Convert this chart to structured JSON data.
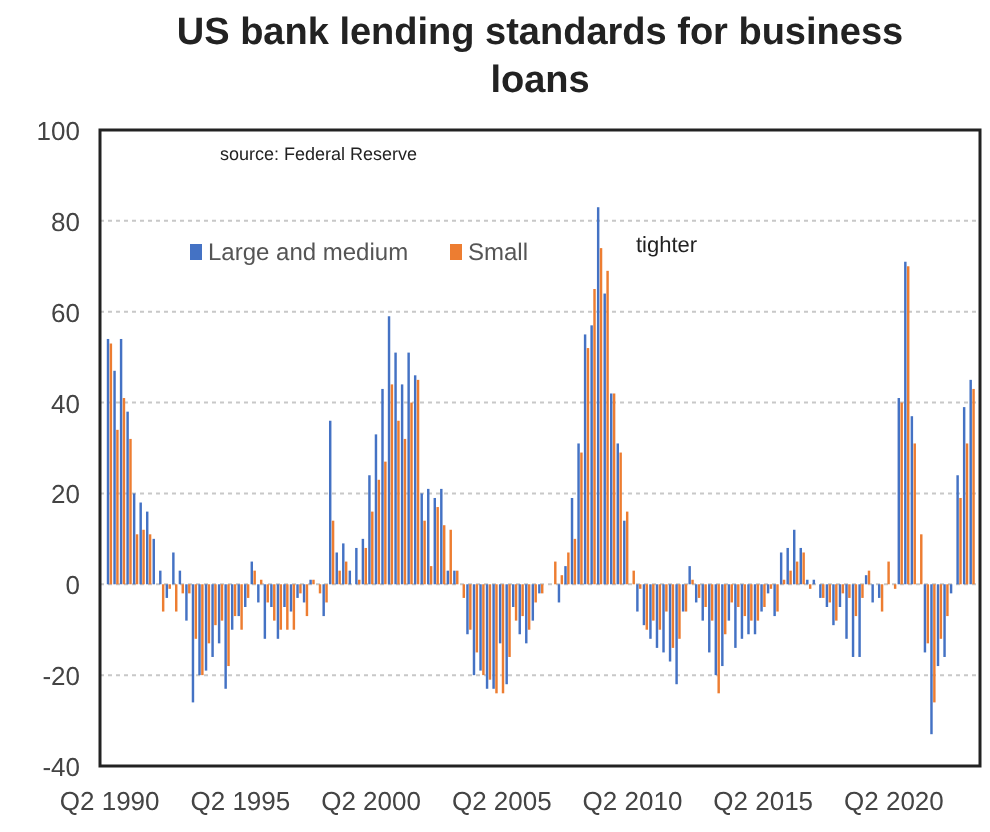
{
  "chart_data": {
    "type": "bar",
    "title": "US bank lending standards for business loans",
    "categories": [
      "Q2 1990",
      null,
      null,
      null,
      null,
      null,
      null,
      null,
      null,
      null,
      null,
      null,
      null,
      null,
      null,
      null,
      null,
      null,
      null,
      null,
      "Q2 1995",
      null,
      null,
      null,
      null,
      null,
      null,
      null,
      null,
      null,
      null,
      null,
      null,
      null,
      null,
      null,
      null,
      null,
      null,
      null,
      "Q2 2000",
      null,
      null,
      null,
      null,
      null,
      null,
      null,
      null,
      null,
      null,
      null,
      null,
      null,
      null,
      null,
      null,
      null,
      null,
      null,
      "Q2 2005",
      null,
      null,
      null,
      null,
      null,
      null,
      null,
      null,
      null,
      null,
      null,
      null,
      null,
      null,
      null,
      null,
      null,
      null,
      null,
      "Q2 2010",
      null,
      null,
      null,
      null,
      null,
      null,
      null,
      null,
      null,
      null,
      null,
      null,
      null,
      null,
      null,
      null,
      null,
      null,
      null,
      "Q2 2015",
      null,
      null,
      null,
      null,
      null,
      null,
      null,
      null,
      null,
      null,
      null,
      null,
      null,
      null,
      null,
      null,
      null,
      null,
      null,
      "Q2 2020",
      null,
      null,
      null,
      null,
      null,
      null,
      null,
      null,
      null,
      null,
      null,
      null
    ],
    "series": [
      {
        "name": "Large and medium",
        "color": "#4472c4",
        "values": [
          54,
          47,
          54,
          38,
          20,
          18,
          16,
          10,
          3,
          -3,
          7,
          3,
          -8,
          -26,
          -20,
          -19,
          -16,
          -13,
          -23,
          -10,
          -7,
          -5,
          5,
          -4,
          -12,
          -5,
          -12,
          -5,
          -6,
          -3,
          -4,
          1,
          0,
          -7,
          36,
          7,
          9,
          3,
          8,
          10,
          24,
          33,
          43,
          59,
          51,
          44,
          51,
          46,
          20,
          21,
          19,
          21,
          3,
          3,
          0,
          -11,
          -20,
          -19,
          -23,
          -23,
          -13,
          -22,
          -5,
          -11,
          -13,
          -8,
          -2,
          0,
          0,
          -4,
          4,
          19,
          31,
          55,
          57,
          83,
          64,
          42,
          31,
          14,
          0,
          -6,
          -9,
          -12,
          -14,
          -15,
          -17,
          -22,
          -6,
          4,
          -4,
          -8,
          -15,
          -20,
          -18,
          -8,
          -14,
          -12,
          -11,
          -11,
          -6,
          -2,
          -7,
          7,
          8,
          12,
          8,
          1,
          1,
          -3,
          -5,
          -9,
          -5,
          -12,
          -16,
          -16,
          2,
          -4,
          -3,
          0,
          0,
          41,
          71,
          37,
          0,
          -15,
          -33,
          -18,
          -16,
          -2,
          24,
          39,
          45
        ]
      },
      {
        "name": "Small",
        "color": "#ed7d31",
        "values": [
          53,
          34,
          41,
          32,
          11,
          12,
          11,
          0,
          -6,
          -1,
          -6,
          -2,
          -2,
          -12,
          -20,
          -13,
          -9,
          -8,
          -18,
          -7,
          -10,
          -3,
          3,
          1,
          -4,
          -8,
          -10,
          -10,
          -10,
          -2,
          -7,
          1,
          -2,
          -4,
          14,
          3,
          5,
          0,
          1,
          8,
          16,
          23,
          27,
          44,
          36,
          32,
          40,
          45,
          14,
          4,
          17,
          13,
          12,
          3,
          -3,
          -10,
          -15,
          -20,
          -21,
          -24,
          -24,
          -16,
          -8,
          -7,
          -10,
          -4,
          -2,
          0,
          5,
          2,
          7,
          10,
          29,
          52,
          65,
          74,
          69,
          42,
          29,
          16,
          3,
          -1,
          -10,
          -8,
          -10,
          -6,
          -14,
          -12,
          -6,
          1,
          -3,
          -5,
          -8,
          -24,
          -11,
          -4,
          -5,
          -7,
          -8,
          -8,
          -5,
          -1,
          -6,
          1,
          3,
          5,
          7,
          -1,
          0,
          -3,
          -4,
          -8,
          -2,
          -3,
          -7,
          -3,
          3,
          0,
          -6,
          5,
          -1,
          40,
          70,
          31,
          11,
          -13,
          -26,
          -12,
          -7,
          0,
          19,
          31,
          43
        ]
      }
    ],
    "ylim": [
      -40,
      100
    ],
    "yticks": [
      -40,
      -20,
      0,
      20,
      40,
      60,
      80,
      100
    ],
    "grid": "y",
    "legend": "top left",
    "annotations": [
      "source: Federal Reserve",
      "tighter"
    ]
  }
}
